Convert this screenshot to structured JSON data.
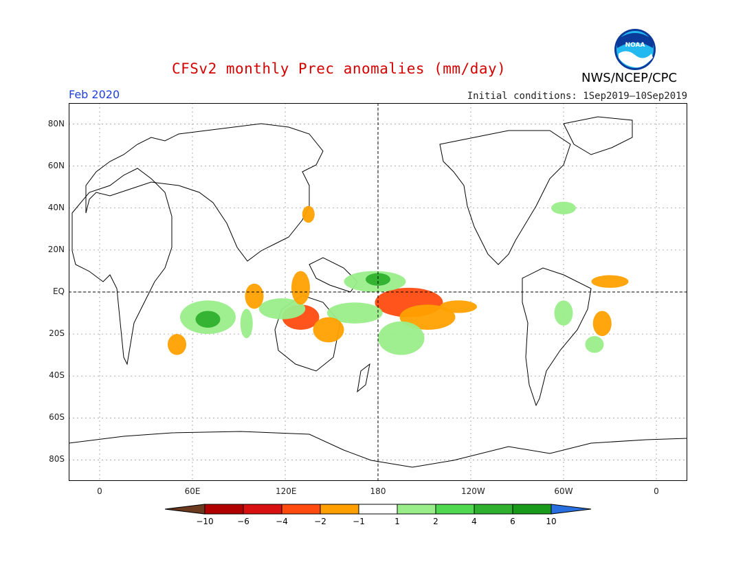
{
  "title": "CFSv2 monthly Prec anomalies (mm/day)",
  "agency": "NWS/NCEP/CPC",
  "logo_text": "NOAA",
  "period": "Feb 2020",
  "initial_conditions": "Initial conditions: 1Sep2019—10Sep2019",
  "lat_labels": [
    "80N",
    "60N",
    "40N",
    "20N",
    "EQ",
    "20S",
    "40S",
    "60S",
    "80S"
  ],
  "lat_values": [
    80,
    60,
    40,
    20,
    0,
    -20,
    -40,
    -60,
    -80
  ],
  "lon_labels": [
    "0",
    "60E",
    "120E",
    "180",
    "120W",
    "60W",
    "0"
  ],
  "lon_values": [
    0,
    60,
    120,
    180,
    240,
    300,
    360
  ],
  "colorbar": {
    "labels": [
      "-10",
      "-6",
      "-4",
      "-2",
      "-1",
      "1",
      "2",
      "4",
      "6",
      "10"
    ],
    "colors": [
      "#6b3a1f",
      "#b00000",
      "#d81010",
      "#ff4b10",
      "#ffa000",
      "#ffffff",
      "#9aee8a",
      "#50d850",
      "#2fb02f",
      "#1a9a1a",
      "#2a6fe0"
    ]
  },
  "colors": {
    "title": "#d40000",
    "period": "#1f3fd8",
    "dry_strong": "#ff4b10",
    "dry": "#ffa000",
    "wet": "#9aee8a",
    "wet_strong": "#2fb02f"
  }
}
